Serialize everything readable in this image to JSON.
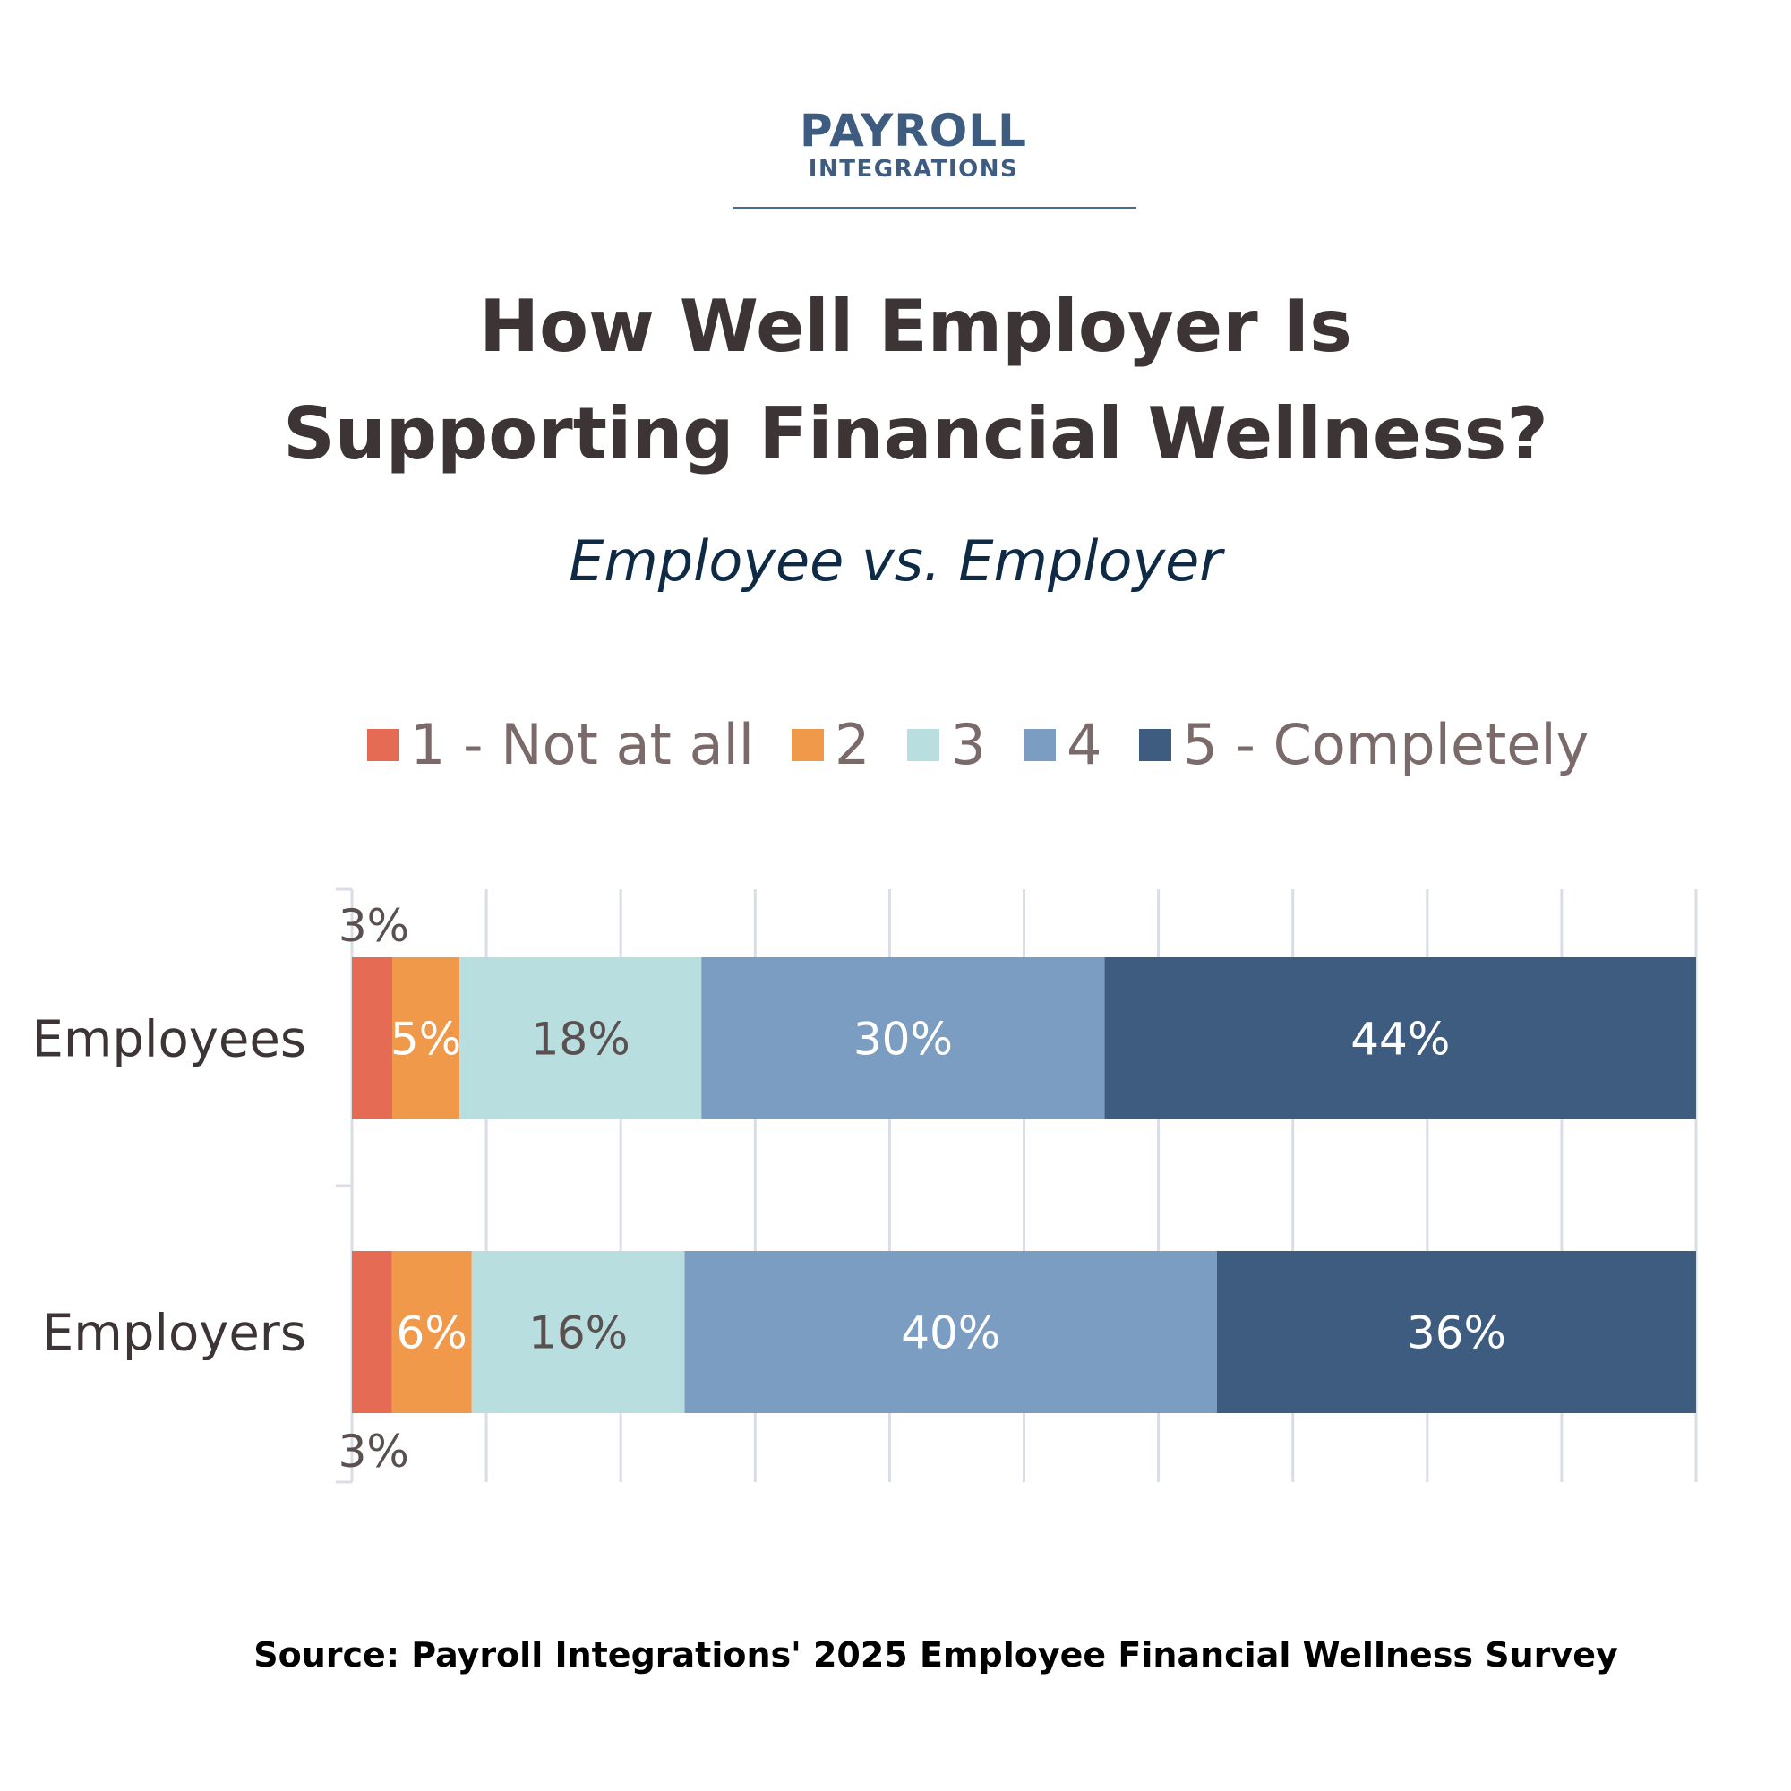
{
  "logo": {
    "line1": "PAYROLL",
    "line2": "INTEGRATIONS"
  },
  "chart_data": {
    "type": "bar",
    "orientation": "horizontal",
    "stacked": true,
    "title_line1": "How Well Employer Is",
    "title_line2": "Supporting Financial Wellness?",
    "subtitle": "Employee vs. Employer",
    "categories": [
      "Employees",
      "Employers"
    ],
    "series": [
      {
        "name": "1 - Not at all",
        "color": "#e56b55",
        "values": [
          3,
          3
        ],
        "label_color": "#5a5050"
      },
      {
        "name": "2",
        "color": "#f0994a",
        "values": [
          5,
          6
        ],
        "label_color": "#ffffff"
      },
      {
        "name": "3",
        "color": "#b8dedf",
        "values": [
          18,
          16
        ],
        "label_color": "#5a5050"
      },
      {
        "name": "4",
        "color": "#7b9dc2",
        "values": [
          30,
          40
        ],
        "label_color": "#ffffff"
      },
      {
        "name": "5 - Completely",
        "color": "#3d5c80",
        "values": [
          44,
          36
        ],
        "label_color": "#ffffff"
      }
    ],
    "value_suffix": "%",
    "grid": true,
    "legend_placement": "top"
  },
  "source": "Source: Payroll Integrations' 2025 Employee Financial Wellness Survey"
}
